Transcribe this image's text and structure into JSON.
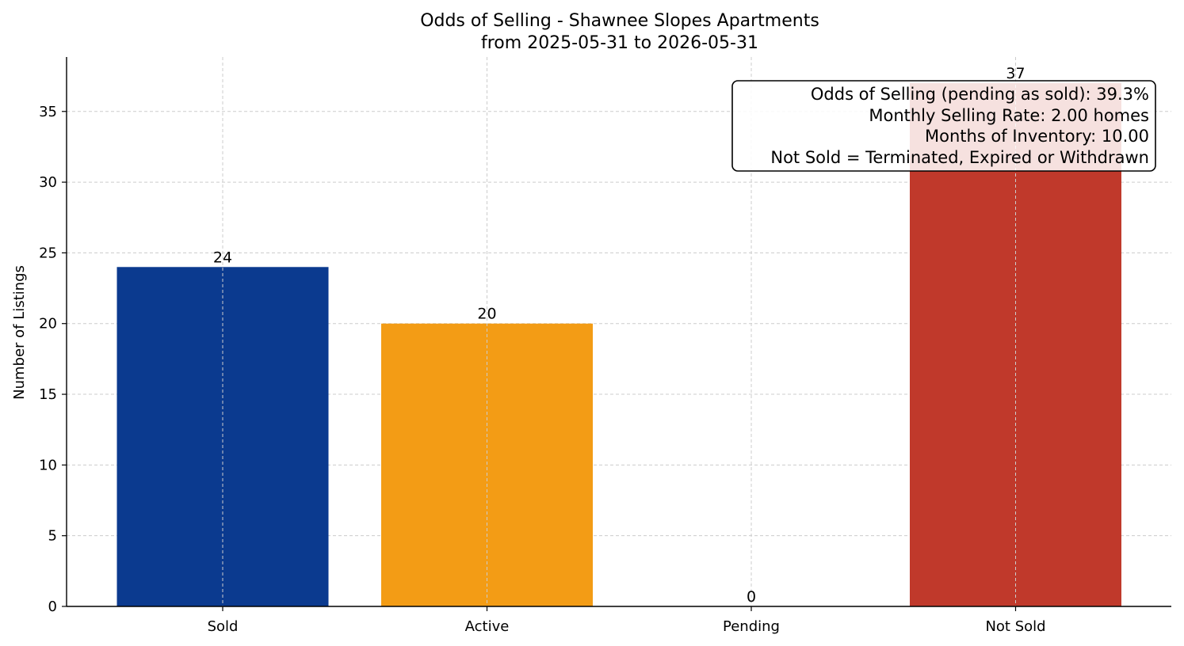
{
  "chart_data": {
    "type": "bar",
    "title": "Odds of Selling - Shawnee Slopes Apartments",
    "subtitle": "from 2025-05-31 to 2026-05-31",
    "xlabel": "",
    "ylabel": "Number of Listings",
    "ylim": [
      0,
      38.85
    ],
    "yticks": [
      0,
      5,
      10,
      15,
      20,
      25,
      30,
      35
    ],
    "grid": true,
    "categories": [
      "Sold",
      "Active",
      "Pending",
      "Not Sold"
    ],
    "values": [
      24,
      20,
      0,
      37
    ],
    "colors": [
      "#0b3a8f",
      "#f39c15",
      "#2e8b57",
      "#c0392b"
    ],
    "info_box": [
      "Odds of Selling (pending as sold): 39.3%",
      "Monthly Selling Rate: 2.00 homes",
      "Months of Inventory: 10.00",
      "Not Sold = Terminated, Expired or Withdrawn"
    ]
  }
}
